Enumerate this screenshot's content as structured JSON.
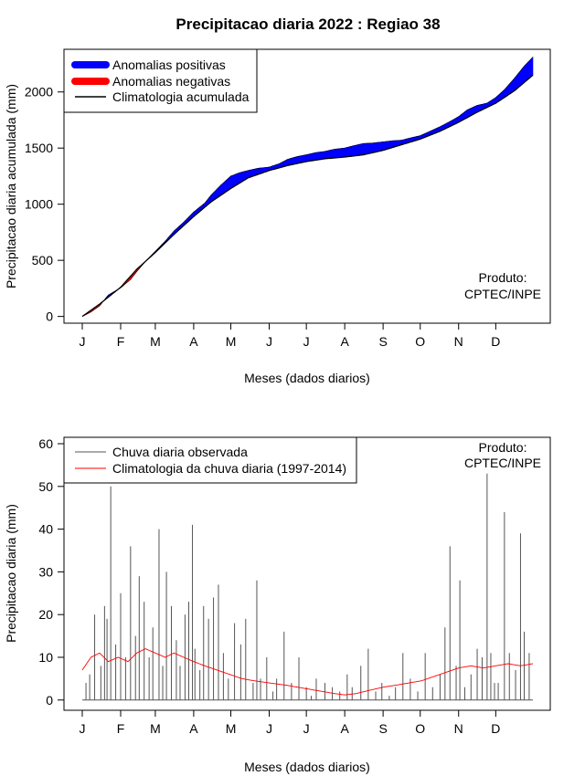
{
  "figure": {
    "title": "Precipitacao diaria 2022 : Regiao 38"
  },
  "chart_data": [
    {
      "type": "area",
      "ylabel": "Precipitacao diaria acumulada (mm)",
      "xlabel": "Meses (dados diarios)",
      "xlim": [
        1,
        365
      ],
      "ylim": [
        -60,
        2380
      ],
      "yticks": [
        0,
        500,
        1000,
        1500,
        2000
      ],
      "month_ticks": [
        {
          "label": "J",
          "day": 1
        },
        {
          "label": "F",
          "day": 32
        },
        {
          "label": "M",
          "day": 60
        },
        {
          "label": "A",
          "day": 91
        },
        {
          "label": "M",
          "day": 121
        },
        {
          "label": "J",
          "day": 152
        },
        {
          "label": "J",
          "day": 182
        },
        {
          "label": "A",
          "day": 213
        },
        {
          "label": "S",
          "day": 244
        },
        {
          "label": "O",
          "day": 274
        },
        {
          "label": "N",
          "day": 305
        },
        {
          "label": "D",
          "day": 335
        }
      ],
      "legend": {
        "position": "top-left",
        "entries": [
          {
            "label": "Anomalias positivas",
            "color": "#0000ff"
          },
          {
            "label": "Anomalias negativas",
            "color": "#ff0000"
          },
          {
            "label": "Climatologia acumulada",
            "color": "#000000"
          }
        ]
      },
      "credit": [
        "Produto:",
        "CPTEC/INPE"
      ],
      "series": [
        {
          "name": "Climatologia acumulada",
          "color": "#000000",
          "x": [
            1,
            15,
            32,
            45,
            60,
            75,
            91,
            105,
            121,
            135,
            152,
            167,
            182,
            197,
            213,
            228,
            244,
            259,
            274,
            290,
            305,
            320,
            335,
            350,
            365
          ],
          "y": [
            0,
            110,
            260,
            420,
            570,
            730,
            890,
            1020,
            1140,
            1235,
            1300,
            1345,
            1380,
            1405,
            1420,
            1440,
            1480,
            1530,
            1580,
            1650,
            1730,
            1820,
            1900,
            2010,
            2150
          ]
        },
        {
          "name": "Precipitacao observada acumulada",
          "color": "#000000",
          "x": [
            1,
            8,
            15,
            22,
            32,
            40,
            45,
            52,
            60,
            68,
            75,
            83,
            91,
            100,
            105,
            113,
            121,
            128,
            135,
            143,
            152,
            160,
            167,
            175,
            182,
            190,
            197,
            205,
            213,
            220,
            228,
            236,
            244,
            252,
            259,
            266,
            274,
            282,
            290,
            297,
            305,
            312,
            320,
            328,
            335,
            342,
            350,
            358,
            365
          ],
          "y": [
            0,
            40,
            95,
            190,
            255,
            330,
            400,
            490,
            580,
            670,
            760,
            840,
            930,
            1010,
            1080,
            1170,
            1250,
            1280,
            1300,
            1320,
            1330,
            1360,
            1400,
            1425,
            1440,
            1460,
            1470,
            1490,
            1500,
            1520,
            1540,
            1545,
            1555,
            1565,
            1570,
            1590,
            1610,
            1650,
            1690,
            1730,
            1780,
            1840,
            1880,
            1900,
            1950,
            2020,
            2120,
            2230,
            2310
          ]
        }
      ]
    },
    {
      "type": "bar",
      "ylabel": "Precipitacao diaria (mm)",
      "xlabel": "Meses (dados diarios)",
      "xlim": [
        1,
        365
      ],
      "ylim": [
        -2.4,
        61.5
      ],
      "yticks": [
        0,
        10,
        20,
        30,
        40,
        50,
        60
      ],
      "month_ticks": [
        {
          "label": "J",
          "day": 1
        },
        {
          "label": "F",
          "day": 32
        },
        {
          "label": "M",
          "day": 60
        },
        {
          "label": "A",
          "day": 91
        },
        {
          "label": "M",
          "day": 121
        },
        {
          "label": "J",
          "day": 152
        },
        {
          "label": "J",
          "day": 182
        },
        {
          "label": "A",
          "day": 213
        },
        {
          "label": "S",
          "day": 244
        },
        {
          "label": "O",
          "day": 274
        },
        {
          "label": "N",
          "day": 305
        },
        {
          "label": "D",
          "day": 335
        }
      ],
      "legend": {
        "position": "top-left",
        "entries": [
          {
            "label": "Chuva diaria observada",
            "color": "#555555"
          },
          {
            "label": "Climatologia da chuva diaria (1997-2014)",
            "color": "#ff0000"
          }
        ]
      },
      "credit": [
        "Produto:",
        "CPTEC/INPE"
      ],
      "series": [
        {
          "name": "Chuva diaria observada",
          "color": "#555555",
          "x": [
            4,
            7,
            11,
            16,
            19,
            21,
            24,
            28,
            32,
            36,
            40,
            44,
            47,
            51,
            55,
            58,
            63,
            66,
            69,
            73,
            77,
            80,
            84,
            87,
            90,
            92,
            96,
            99,
            103,
            107,
            111,
            115,
            119,
            124,
            129,
            133,
            139,
            142,
            145,
            150,
            155,
            158,
            164,
            170,
            176,
            182,
            186,
            190,
            197,
            203,
            209,
            215,
            219,
            226,
            232,
            238,
            243,
            249,
            254,
            260,
            266,
            272,
            278,
            284,
            290,
            294,
            298,
            303,
            306,
            310,
            315,
            320,
            324,
            328,
            331,
            334,
            337,
            342,
            346,
            351,
            355,
            358,
            362
          ],
          "y": [
            4,
            6,
            20,
            8,
            22,
            19,
            50,
            13,
            25,
            10,
            36,
            15,
            29,
            23,
            10,
            17,
            40,
            8,
            30,
            22,
            14,
            8,
            20,
            23,
            41,
            12,
            7,
            22,
            19,
            24,
            27,
            11,
            5,
            18,
            13,
            19,
            4,
            28,
            5,
            10,
            2,
            5,
            16,
            4,
            10,
            3,
            1,
            5,
            4,
            3,
            2,
            6,
            3,
            8,
            12,
            2,
            4,
            1,
            3,
            11,
            5,
            2,
            11,
            3,
            6,
            17,
            36,
            8,
            28,
            3,
            6,
            12,
            10,
            53,
            11,
            4,
            4,
            44,
            11,
            7,
            39,
            16,
            11
          ]
        },
        {
          "name": "Climatologia da chuva diaria (1997-2014)",
          "color": "#ff0000",
          "x": [
            1,
            8,
            15,
            22,
            30,
            38,
            45,
            52,
            60,
            68,
            75,
            83,
            91,
            100,
            110,
            120,
            130,
            140,
            152,
            165,
            175,
            185,
            195,
            205,
            213,
            222,
            232,
            244,
            255,
            265,
            275,
            285,
            295,
            305,
            315,
            325,
            335,
            345,
            355,
            365
          ],
          "y": [
            7,
            10,
            11,
            9,
            10,
            9,
            11,
            12,
            11,
            10,
            11,
            10,
            9,
            8,
            7,
            6,
            5,
            4.5,
            4,
            3.5,
            3,
            2.5,
            2,
            1.5,
            1.2,
            1.5,
            2.2,
            3,
            3.5,
            4,
            4.5,
            5.5,
            6.5,
            7.5,
            8,
            7.5,
            8,
            8.5,
            8,
            8.5
          ]
        }
      ]
    }
  ]
}
